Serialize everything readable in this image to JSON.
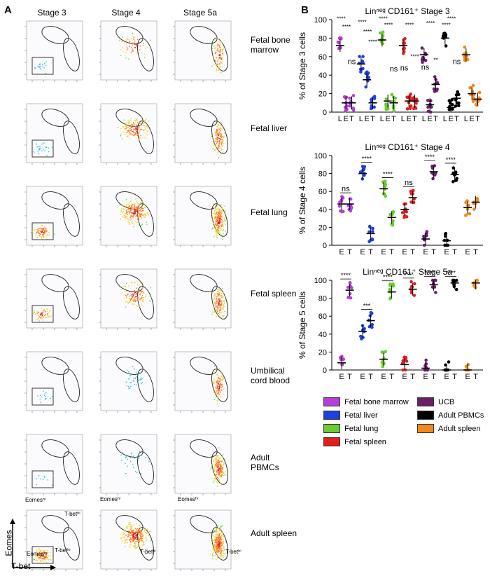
{
  "panelA": {
    "letter": "A",
    "columns": [
      "Stage 3",
      "Stage 4",
      "Stage 5a"
    ],
    "rows": [
      {
        "label": "Fetal bone marrow"
      },
      {
        "label": "Fetal liver"
      },
      {
        "label": "Fetal lung"
      },
      {
        "label": "Fetal spleen"
      },
      {
        "label": "Umbilical cord blood"
      },
      {
        "label": "Adult PBMCs"
      },
      {
        "label": "Adult spleen"
      }
    ],
    "axis_y": "Eomes",
    "axis_x": "T-bet",
    "annotations": {
      "stage3_eomes_hi": "Eomesʰⁱ",
      "stage3_tbet_hi": "T-betʰⁱ",
      "stage3_eomes_lo": "Eomesˡᵒ",
      "stage3_tbet_lo": "T-betˡᵒ",
      "stage4_eomes_hi": "Eomesʰⁱ",
      "stage4_tbet_hi": "T-betʰⁱ",
      "stage5_eomes_hi": "Eomesʰⁱ",
      "stage5_tbet_hi": "T-betʰⁱ"
    }
  },
  "panelB": {
    "letter": "B"
  },
  "colors": {
    "Fetal bone marrow": "#b43fd6",
    "Fetal liver": "#1f3fe0",
    "Fetal lung": "#6ccb2f",
    "Fetal spleen": "#e01f1f",
    "UCB": "#6b1f6b",
    "Adult PBMCs": "#000000",
    "Adult spleen": "#f08a1f"
  },
  "legend": [
    "Fetal bone marrow",
    "UCB",
    "Fetal liver",
    "Adult PBMCs",
    "Fetal lung",
    "Adult spleen",
    "Fetal spleen"
  ],
  "chart_data": [
    {
      "type": "scatter",
      "title": "Linⁿᵉᵍ CD161⁺ Stage 3",
      "ylabel": "% of Stage 3 cells",
      "ylim": [
        0,
        100
      ],
      "yticks": [
        0,
        20,
        40,
        60,
        80,
        100
      ],
      "categories": [
        "L",
        "E",
        "T",
        "L",
        "E",
        "T",
        "L",
        "E",
        "T",
        "L",
        "E",
        "T",
        "L",
        "E",
        "T",
        "L",
        "E",
        "T",
        "L",
        "E",
        "T"
      ],
      "series": [
        {
          "name": "Fetal bone marrow",
          "values": {
            "L": 72,
            "E": 10,
            "T": 10
          }
        },
        {
          "name": "Fetal liver",
          "values": {
            "L": 52,
            "E": 35,
            "T": 10
          }
        },
        {
          "name": "Fetal lung",
          "values": {
            "L": 78,
            "E": 12,
            "T": 10
          }
        },
        {
          "name": "Fetal spleen",
          "values": {
            "L": 72,
            "E": 12,
            "T": 12
          }
        },
        {
          "name": "UCB",
          "values": {
            "L": 62,
            "E": 8,
            "T": 30
          }
        },
        {
          "name": "Adult PBMCs",
          "values": {
            "L": 80,
            "E": 5,
            "T": 15
          }
        },
        {
          "name": "Adult spleen",
          "values": {
            "L": 62,
            "E": 20,
            "T": 14
          }
        }
      ],
      "annotations": [
        "****",
        "****",
        "ns",
        "****",
        "****",
        "****",
        "****",
        "****",
        "ns",
        "ns",
        "****",
        "****",
        "ns",
        "****",
        "**",
        "****",
        "****",
        "ns"
      ]
    },
    {
      "type": "scatter",
      "title": "Linⁿᵉᵍ CD161⁺ Stage 4",
      "ylabel": "% of Stage 4 cells",
      "ylim": [
        0,
        100
      ],
      "yticks": [
        0,
        20,
        40,
        60,
        80,
        100
      ],
      "categories": [
        "E",
        "T",
        "E",
        "T",
        "E",
        "T",
        "E",
        "T",
        "E",
        "T",
        "E",
        "T",
        "E",
        "T"
      ],
      "series": [
        {
          "name": "Fetal bone marrow",
          "values": {
            "E": 46,
            "T": 46
          }
        },
        {
          "name": "Fetal liver",
          "values": {
            "E": 80,
            "T": 13
          }
        },
        {
          "name": "Fetal lung",
          "values": {
            "E": 63,
            "T": 31
          }
        },
        {
          "name": "Fetal spleen",
          "values": {
            "E": 40,
            "T": 53
          }
        },
        {
          "name": "UCB",
          "values": {
            "E": 7,
            "T": 82
          }
        },
        {
          "name": "Adult PBMCs",
          "values": {
            "E": 5,
            "T": 79
          }
        },
        {
          "name": "Adult spleen",
          "values": {
            "E": 42,
            "T": 48
          }
        }
      ],
      "annotations": [
        "ns",
        "****",
        "****",
        "ns",
        "****",
        "****"
      ]
    },
    {
      "type": "scatter",
      "title": "Linⁿᵉᵍ CD161⁺ Stage 5a",
      "ylabel": "% of Stage 5 cells",
      "ylim": [
        0,
        100
      ],
      "yticks": [
        0,
        20,
        40,
        60,
        80,
        100
      ],
      "categories": [
        "E",
        "T",
        "E",
        "T",
        "E",
        "T",
        "E",
        "T",
        "E",
        "T",
        "E",
        "T",
        "E",
        "T"
      ],
      "series": [
        {
          "name": "Fetal bone marrow",
          "values": {
            "E": 8,
            "T": 89
          }
        },
        {
          "name": "Fetal liver",
          "values": {
            "E": 43,
            "T": 55
          }
        },
        {
          "name": "Fetal lung",
          "values": {
            "E": 12,
            "T": 87
          }
        },
        {
          "name": "Fetal spleen",
          "values": {
            "E": 6,
            "T": 90
          }
        },
        {
          "name": "UCB",
          "values": {
            "E": 2,
            "T": 95
          }
        },
        {
          "name": "Adult PBMCs",
          "values": {
            "E": 0,
            "T": 97
          }
        },
        {
          "name": "Adult spleen",
          "values": {
            "E": 0,
            "T": 97
          }
        }
      ],
      "annotations": [
        "****",
        "***",
        "****",
        "****",
        "****",
        "****"
      ]
    }
  ]
}
